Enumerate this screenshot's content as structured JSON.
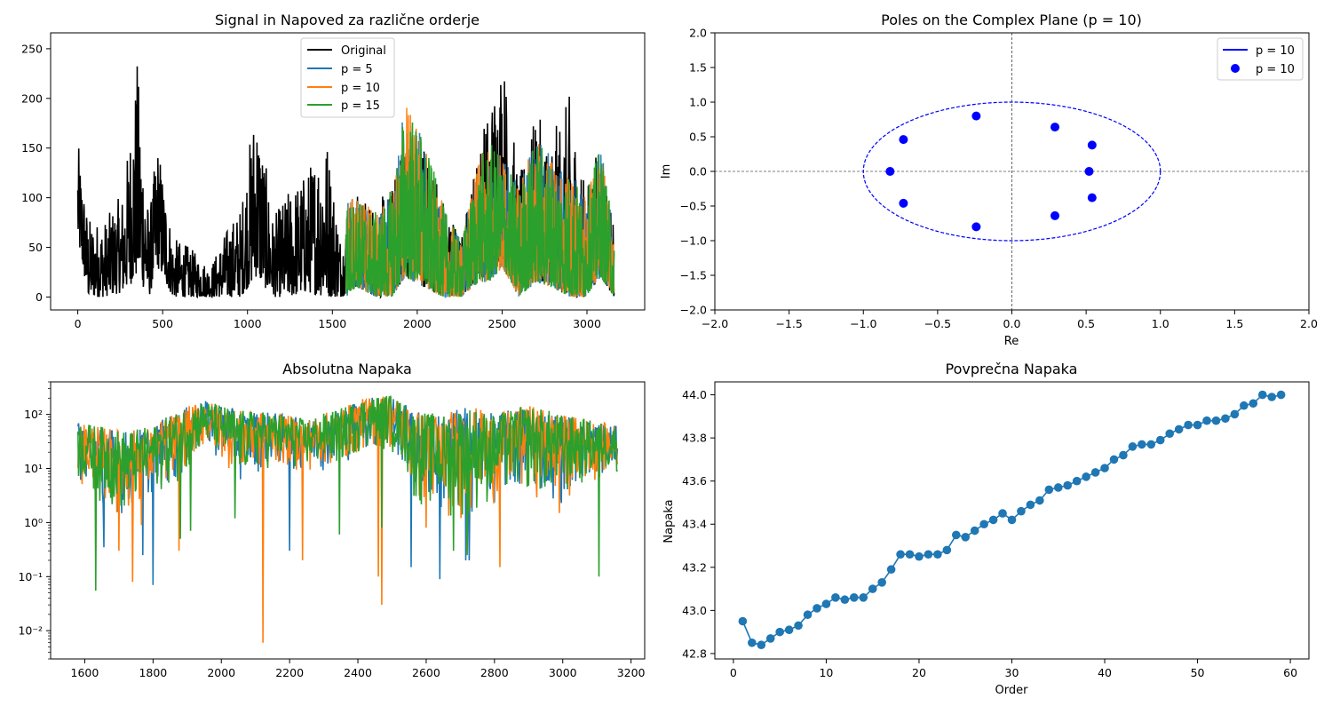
{
  "chart_data": [
    {
      "type": "line",
      "title": "Signal in Napoved za različne orderje",
      "xlabel": "",
      "ylabel": "",
      "xlim": [
        -160,
        3340
      ],
      "ylim": [
        -13,
        266
      ],
      "x_ticks": [
        0,
        500,
        1000,
        1500,
        2000,
        2500,
        3000
      ],
      "y_ticks": [
        0,
        50,
        100,
        150,
        200,
        250
      ],
      "legend_position": "top-center",
      "series": [
        {
          "name": "Original",
          "color": "#000000",
          "x_range": [
            0,
            3160
          ],
          "envelope": [
            {
              "x": 0,
              "low": 55,
              "high": 158
            },
            {
              "x": 60,
              "low": 0,
              "high": 80
            },
            {
              "x": 150,
              "low": 0,
              "high": 75
            },
            {
              "x": 270,
              "low": 5,
              "high": 108
            },
            {
              "x": 350,
              "low": 20,
              "high": 238
            },
            {
              "x": 420,
              "low": 0,
              "high": 80
            },
            {
              "x": 470,
              "low": 30,
              "high": 160
            },
            {
              "x": 560,
              "low": 0,
              "high": 60
            },
            {
              "x": 650,
              "low": 0,
              "high": 52
            },
            {
              "x": 780,
              "low": 0,
              "high": 30
            },
            {
              "x": 880,
              "low": 0,
              "high": 70
            },
            {
              "x": 960,
              "low": 0,
              "high": 90
            },
            {
              "x": 1050,
              "low": 20,
              "high": 205
            },
            {
              "x": 1150,
              "low": 0,
              "high": 80
            },
            {
              "x": 1250,
              "low": 0,
              "high": 110
            },
            {
              "x": 1350,
              "low": 5,
              "high": 127
            },
            {
              "x": 1460,
              "low": 0,
              "high": 175
            },
            {
              "x": 1550,
              "low": 0,
              "high": 60
            },
            {
              "x": 1640,
              "low": 10,
              "high": 105
            },
            {
              "x": 1760,
              "low": 0,
              "high": 95
            },
            {
              "x": 1850,
              "low": 0,
              "high": 112
            },
            {
              "x": 1930,
              "low": 20,
              "high": 160
            },
            {
              "x": 2040,
              "low": 10,
              "high": 163
            },
            {
              "x": 2150,
              "low": 0,
              "high": 100
            },
            {
              "x": 2260,
              "low": 0,
              "high": 60
            },
            {
              "x": 2360,
              "low": 20,
              "high": 155
            },
            {
              "x": 2430,
              "low": 20,
              "high": 200
            },
            {
              "x": 2500,
              "low": 40,
              "high": 253
            },
            {
              "x": 2600,
              "low": 0,
              "high": 120
            },
            {
              "x": 2700,
              "low": 20,
              "high": 185
            },
            {
              "x": 2790,
              "low": 10,
              "high": 162
            },
            {
              "x": 2900,
              "low": 0,
              "high": 205
            },
            {
              "x": 2990,
              "low": 0,
              "high": 110
            },
            {
              "x": 3080,
              "low": 20,
              "high": 160
            },
            {
              "x": 3160,
              "low": 0,
              "high": 70
            }
          ]
        },
        {
          "name": "p = 5",
          "color": "#1f77b4",
          "x_range": [
            1580,
            3160
          ]
        },
        {
          "name": "p = 10",
          "color": "#ff7f0e",
          "x_range": [
            1580,
            3160
          ]
        },
        {
          "name": "p = 15",
          "color": "#2ca02c",
          "x_range": [
            1580,
            3160
          ],
          "envelope": [
            {
              "x": 1580,
              "low": 0,
              "high": 95
            },
            {
              "x": 1640,
              "low": 10,
              "high": 102
            },
            {
              "x": 1760,
              "low": 0,
              "high": 85
            },
            {
              "x": 1850,
              "low": 0,
              "high": 110
            },
            {
              "x": 1930,
              "low": 20,
              "high": 200
            },
            {
              "x": 2040,
              "low": 10,
              "high": 162
            },
            {
              "x": 2150,
              "low": 0,
              "high": 95
            },
            {
              "x": 2260,
              "low": 0,
              "high": 55
            },
            {
              "x": 2360,
              "low": 15,
              "high": 140
            },
            {
              "x": 2430,
              "low": 15,
              "high": 155
            },
            {
              "x": 2500,
              "low": 30,
              "high": 145
            },
            {
              "x": 2600,
              "low": 0,
              "high": 110
            },
            {
              "x": 2700,
              "low": 15,
              "high": 165
            },
            {
              "x": 2790,
              "low": 10,
              "high": 140
            },
            {
              "x": 2900,
              "low": 0,
              "high": 130
            },
            {
              "x": 2990,
              "low": 0,
              "high": 100
            },
            {
              "x": 3080,
              "low": 20,
              "high": 155
            },
            {
              "x": 3160,
              "low": 0,
              "high": 65
            }
          ]
        }
      ]
    },
    {
      "type": "scatter",
      "title": "Poles on the Complex Plane (p = 10)",
      "xlabel": "Re",
      "ylabel": "Im",
      "xlim": [
        -2.0,
        2.0
      ],
      "ylim": [
        -2.0,
        2.0
      ],
      "x_ticks": [
        "−2.0",
        "−1.5",
        "−1.0",
        "−0.5",
        "0.0",
        "0.5",
        "1.0",
        "1.5",
        "2.0"
      ],
      "y_ticks": [
        "−2.0",
        "−1.5",
        "−1.0",
        "−0.5",
        "0.0",
        "0.5",
        "1.0",
        "1.5",
        "2.0"
      ],
      "legend_position": "top-right",
      "unit_circle": {
        "name": "p = 10",
        "color": "#0000ff",
        "style": "dashed"
      },
      "poles": {
        "name": "p = 10",
        "color": "#0000ff",
        "points": [
          {
            "re": -0.82,
            "im": 0.0
          },
          {
            "re": -0.73,
            "im": 0.46
          },
          {
            "re": -0.73,
            "im": -0.46
          },
          {
            "re": -0.24,
            "im": 0.8
          },
          {
            "re": -0.24,
            "im": -0.8
          },
          {
            "re": 0.29,
            "im": 0.64
          },
          {
            "re": 0.29,
            "im": -0.64
          },
          {
            "re": 0.52,
            "im": 0.0
          },
          {
            "re": 0.54,
            "im": 0.38
          },
          {
            "re": 0.54,
            "im": -0.38
          }
        ]
      }
    },
    {
      "type": "line",
      "title": "Absolutna Napaka",
      "xlabel": "",
      "ylabel": "",
      "y_scale": "log",
      "xlim": [
        1500,
        3240
      ],
      "ylim": [
        0.003,
        400
      ],
      "x_ticks": [
        1600,
        1800,
        2000,
        2200,
        2400,
        2600,
        2800,
        3000,
        3200
      ],
      "y_ticks": [
        "10⁻²",
        "10⁻¹",
        "10⁰",
        "10¹",
        "10²"
      ],
      "x_range": [
        1580,
        3160
      ],
      "series": [
        {
          "name": "p = 5",
          "color": "#1f77b4",
          "dips": [
            {
              "x": 1600,
              "y": 8
            },
            {
              "x": 1655,
              "y": 0.35
            },
            {
              "x": 1770,
              "y": 0.25
            },
            {
              "x": 1800,
              "y": 0.07
            },
            {
              "x": 2200,
              "y": 0.3
            },
            {
              "x": 2555,
              "y": 0.15
            },
            {
              "x": 2640,
              "y": 0.09
            },
            {
              "x": 2715,
              "y": 0.2
            },
            {
              "x": 2725,
              "y": 0.2
            }
          ]
        },
        {
          "name": "p = 10",
          "color": "#ff7f0e",
          "dips": [
            {
              "x": 1700,
              "y": 0.3
            },
            {
              "x": 1740,
              "y": 0.08
            },
            {
              "x": 1765,
              "y": 0.9
            },
            {
              "x": 1875,
              "y": 0.3
            },
            {
              "x": 2122,
              "y": 0.006
            },
            {
              "x": 2238,
              "y": 0.2
            },
            {
              "x": 2460,
              "y": 0.1
            },
            {
              "x": 2470,
              "y": 0.03
            },
            {
              "x": 2600,
              "y": 0.8
            },
            {
              "x": 2720,
              "y": 0.3
            },
            {
              "x": 2815,
              "y": 0.15
            },
            {
              "x": 2990,
              "y": 1.5
            }
          ]
        },
        {
          "name": "p = 15",
          "color": "#2ca02c",
          "envelope": [
            {
              "x": 1580,
              "low": 5,
              "high": 75
            },
            {
              "x": 1650,
              "low": 2,
              "high": 60
            },
            {
              "x": 1720,
              "low": 1,
              "high": 50
            },
            {
              "x": 1800,
              "low": 3,
              "high": 60
            },
            {
              "x": 1880,
              "low": 5,
              "high": 120
            },
            {
              "x": 1950,
              "low": 20,
              "high": 180
            },
            {
              "x": 2050,
              "low": 5,
              "high": 120
            },
            {
              "x": 2150,
              "low": 10,
              "high": 110
            },
            {
              "x": 2250,
              "low": 8,
              "high": 80
            },
            {
              "x": 2350,
              "low": 10,
              "high": 130
            },
            {
              "x": 2420,
              "low": 20,
              "high": 200
            },
            {
              "x": 2490,
              "low": 20,
              "high": 240
            },
            {
              "x": 2560,
              "low": 2,
              "high": 120
            },
            {
              "x": 2650,
              "low": 1,
              "high": 100
            },
            {
              "x": 2720,
              "low": 1,
              "high": 150
            },
            {
              "x": 2800,
              "low": 2,
              "high": 100
            },
            {
              "x": 2900,
              "low": 3,
              "high": 150
            },
            {
              "x": 3000,
              "low": 2,
              "high": 100
            },
            {
              "x": 3080,
              "low": 5,
              "high": 80
            },
            {
              "x": 3160,
              "low": 8,
              "high": 60
            }
          ],
          "dips": [
            {
              "x": 1632,
              "y": 0.055
            },
            {
              "x": 1880,
              "y": 0.5
            },
            {
              "x": 1910,
              "y": 0.7
            },
            {
              "x": 2040,
              "y": 1.2
            },
            {
              "x": 2345,
              "y": 0.6
            },
            {
              "x": 2470,
              "y": 0.8
            },
            {
              "x": 2680,
              "y": 0.3
            },
            {
              "x": 2720,
              "y": 0.25
            },
            {
              "x": 3105,
              "y": 0.1
            }
          ]
        }
      ]
    },
    {
      "type": "line",
      "title": "Povprečna Napaka",
      "xlabel": "Order",
      "ylabel": "Napaka",
      "xlim": [
        -2,
        62
      ],
      "ylim": [
        42.775,
        44.06
      ],
      "x_ticks": [
        0,
        10,
        20,
        30,
        40,
        50,
        60
      ],
      "y_ticks": [
        "42.8",
        "43.0",
        "43.2",
        "43.4",
        "43.6",
        "43.8",
        "44.0"
      ],
      "series": [
        {
          "name": "",
          "color": "#1f77b4",
          "x": [
            1,
            2,
            3,
            4,
            5,
            6,
            7,
            8,
            9,
            10,
            11,
            12,
            13,
            14,
            15,
            16,
            17,
            18,
            19,
            20,
            21,
            22,
            23,
            24,
            25,
            26,
            27,
            28,
            29,
            30,
            31,
            32,
            33,
            34,
            35,
            36,
            37,
            38,
            39,
            40,
            41,
            42,
            43,
            44,
            45,
            46,
            47,
            48,
            49,
            50,
            51,
            52,
            53,
            54,
            55,
            56,
            57,
            58,
            59
          ],
          "y": [
            42.95,
            42.85,
            42.84,
            42.87,
            42.9,
            42.91,
            42.93,
            42.98,
            43.01,
            43.03,
            43.06,
            43.05,
            43.06,
            43.06,
            43.1,
            43.13,
            43.19,
            43.26,
            43.26,
            43.25,
            43.26,
            43.26,
            43.28,
            43.35,
            43.34,
            43.37,
            43.4,
            43.42,
            43.45,
            43.42,
            43.46,
            43.49,
            43.51,
            43.56,
            43.57,
            43.58,
            43.6,
            43.62,
            43.64,
            43.66,
            43.7,
            43.72,
            43.76,
            43.77,
            43.77,
            43.79,
            43.82,
            43.84,
            43.86,
            43.86,
            43.88,
            43.88,
            43.89,
            43.91,
            43.95,
            43.96,
            44.0,
            43.99,
            44.0
          ]
        }
      ]
    }
  ]
}
